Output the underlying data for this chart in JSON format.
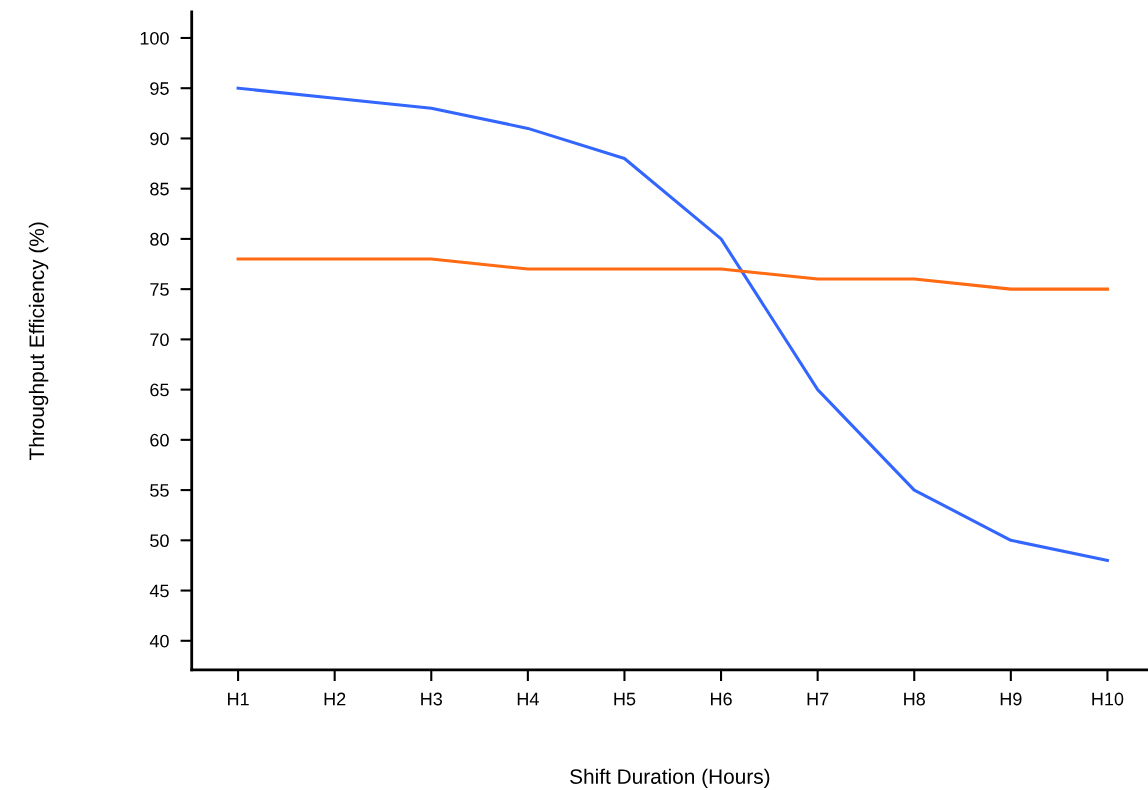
{
  "chart_data": {
    "type": "line",
    "xlabel": "Shift Duration (Hours)",
    "ylabel": "Throughput Efficiency (%)",
    "categories": [
      "H1",
      "H2",
      "H3",
      "H4",
      "H5",
      "H6",
      "H7",
      "H8",
      "H9",
      "H10"
    ],
    "series": [
      {
        "color": "#3366ff",
        "values": [
          95,
          94,
          93,
          91,
          88,
          80,
          65,
          55,
          50,
          48
        ]
      },
      {
        "color": "#ff6a13",
        "values": [
          78,
          78,
          78,
          77,
          77,
          77,
          76,
          76,
          75,
          75
        ]
      }
    ],
    "ylim": [
      37.1,
      102.6
    ],
    "yticks": [
      40,
      45,
      50,
      55,
      60,
      65,
      70,
      75,
      80,
      85,
      90,
      95,
      100
    ],
    "grid": false,
    "marker": "none",
    "line_style": "solid"
  }
}
